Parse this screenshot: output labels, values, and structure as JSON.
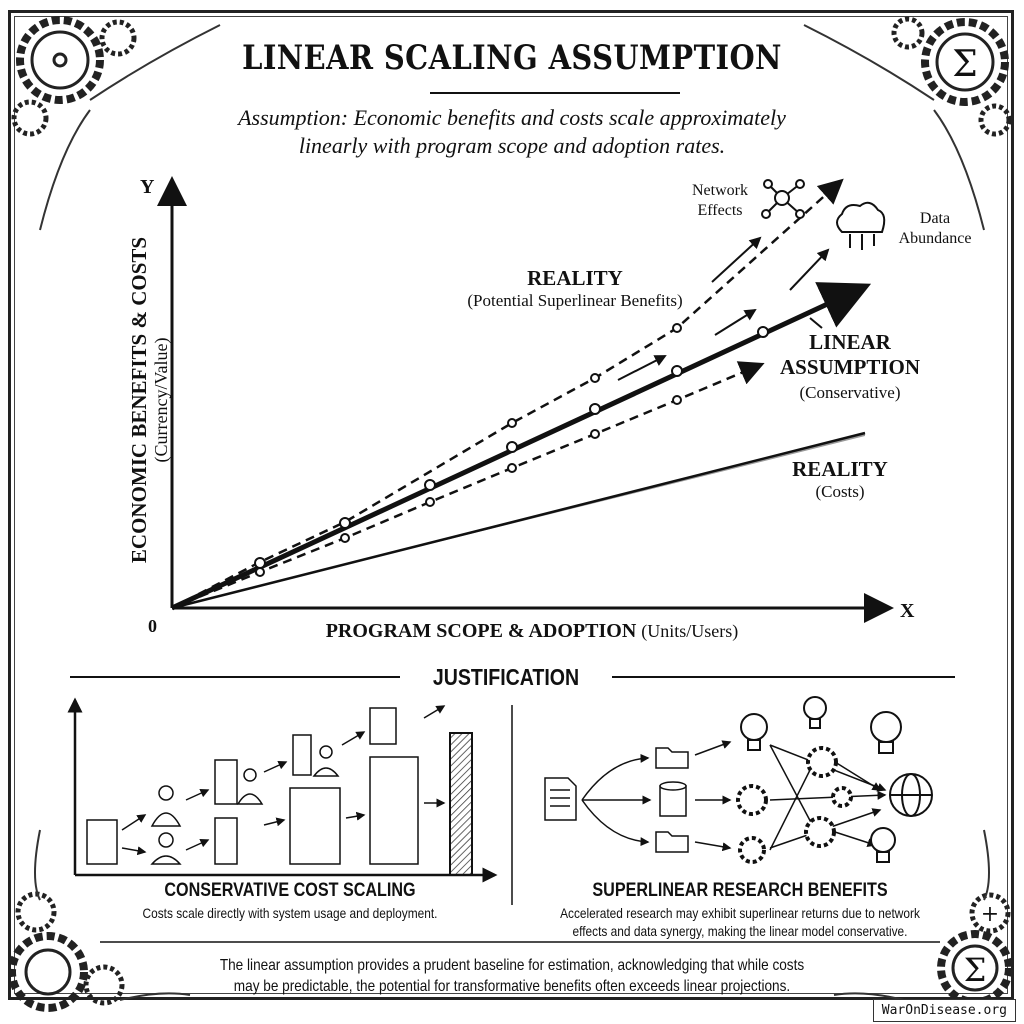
{
  "title": "LINEAR SCALING ASSUMPTION",
  "subtitle_line1": "Assumption: Economic benefits and costs scale approximately",
  "subtitle_line2": "linearly with program scope and adoption rates.",
  "chart": {
    "y_axis_letter": "Y",
    "x_axis_letter": "X",
    "origin_label": "0",
    "y_label": "ECONOMIC BENEFITS & COSTS",
    "y_label_unit": "(Currency/Value)",
    "x_label": "PROGRAM SCOPE & ADOPTION",
    "x_label_unit": "(Units/Users)",
    "reality_benefits_title": "REALITY",
    "reality_benefits_sub": "(Potential Superlinear Benefits)",
    "linear_title_1": "LINEAR",
    "linear_title_2": "ASSUMPTION",
    "linear_sub": "(Conservative)",
    "reality_costs_title": "REALITY",
    "reality_costs_sub": "(Costs)",
    "network_effects_1": "Network",
    "network_effects_2": "Effects",
    "data_abundance_1": "Data",
    "data_abundance_2": "Abundance"
  },
  "justification": {
    "heading": "JUSTIFICATION",
    "left_title": "CONSERVATIVE COST SCALING",
    "left_desc": "Costs scale directly with system usage and deployment.",
    "right_title": "SUPERLINEAR RESEARCH BENEFITS",
    "right_desc_1": "Accelerated research may exhibit superlinear returns due to network",
    "right_desc_2": "effects and data synergy, making the linear model conservative."
  },
  "conclusion_1": "The linear assumption provides a prudent baseline for estimation, acknowledging that while costs",
  "conclusion_2": "may be predictable, the potential for transformative benefits often exceeds linear projections.",
  "watermark": "WarOnDisease.org",
  "icons": [
    "gear-icon",
    "sigma-icon",
    "laurel-icon",
    "network-icon",
    "cloud-icon",
    "server-icon",
    "person-icon",
    "document-icon",
    "folder-icon",
    "database-icon",
    "lightbulb-icon",
    "globe-icon"
  ]
}
